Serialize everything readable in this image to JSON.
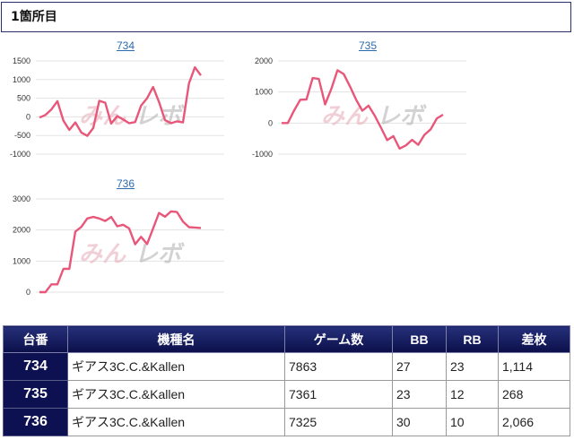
{
  "header": {
    "title": "1箇所目"
  },
  "charts": [
    {
      "title": "734",
      "ylim": [
        -1000,
        1500
      ],
      "yticks": [
        "1500",
        "1000",
        "500",
        "0",
        "-500",
        "-1000"
      ],
      "color": "#e8577a",
      "values": [
        -20,
        50,
        200,
        420,
        -100,
        -350,
        -150,
        -420,
        -510,
        -300,
        430,
        380,
        -180,
        20,
        -70,
        -170,
        -140,
        300,
        500,
        800,
        400,
        -90,
        -170,
        -120,
        -150,
        900,
        1330,
        1114
      ]
    },
    {
      "title": "735",
      "ylim": [
        -1000,
        2000
      ],
      "yticks": [
        "2000",
        "1000",
        "0",
        "-1000"
      ],
      "color": "#e8577a",
      "values": [
        0,
        0,
        400,
        750,
        760,
        1450,
        1420,
        600,
        1100,
        1700,
        1580,
        1180,
        750,
        400,
        560,
        240,
        -150,
        -550,
        -420,
        -820,
        -720,
        -540,
        -700,
        -380,
        -200,
        150,
        268
      ]
    },
    {
      "title": "736",
      "ylim": [
        0,
        3000
      ],
      "yticks": [
        "3000",
        "2000",
        "1000",
        "0"
      ],
      "color": "#e8577a",
      "values": [
        0,
        0,
        250,
        250,
        750,
        750,
        1950,
        2100,
        2370,
        2420,
        2370,
        2290,
        2420,
        2120,
        2170,
        2050,
        1540,
        1780,
        1550,
        2050,
        2550,
        2430,
        2600,
        2580,
        2270,
        2090,
        2080,
        2066
      ]
    }
  ],
  "watermark": {
    "part1": "みん",
    "part2": "レボ"
  },
  "table": {
    "headers": [
      "台番",
      "機種名",
      "ゲーム数",
      "BB",
      "RB",
      "差枚"
    ],
    "rows": [
      {
        "num": "734",
        "machine": "ギアス3C.C.&Kallen",
        "games": "7863",
        "bb": "27",
        "rb": "23",
        "diff": "1,114"
      },
      {
        "num": "735",
        "machine": "ギアス3C.C.&Kallen",
        "games": "7361",
        "bb": "23",
        "rb": "12",
        "diff": "268"
      },
      {
        "num": "736",
        "machine": "ギアス3C.C.&Kallen",
        "games": "7325",
        "bb": "30",
        "rb": "10",
        "diff": "2,066"
      }
    ]
  }
}
